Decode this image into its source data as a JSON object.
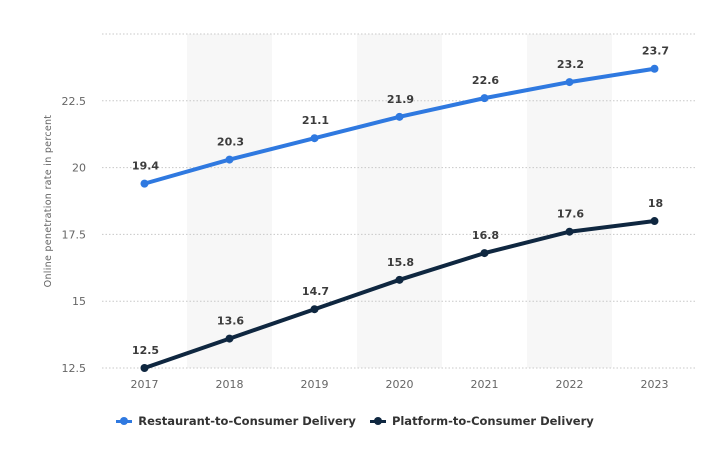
{
  "chart_data": {
    "type": "line",
    "title": "",
    "xlabel": "",
    "ylabel": "Online penetration rate in percent",
    "categories": [
      "2017",
      "2018",
      "2019",
      "2020",
      "2021",
      "2022",
      "2023"
    ],
    "series": [
      {
        "name": "Restaurant-to-Consumer Delivery",
        "color": "#2f79e0",
        "values": [
          19.4,
          20.3,
          21.1,
          21.9,
          22.6,
          23.2,
          23.7
        ],
        "labels": [
          "19.4",
          "20.3",
          "21.1",
          "21.9",
          "22.6",
          "23.2",
          "23.7"
        ]
      },
      {
        "name": "Platform-to-Consumer Delivery",
        "color": "#0f2740",
        "values": [
          12.5,
          13.6,
          14.7,
          15.8,
          16.8,
          17.6,
          18
        ],
        "labels": [
          "12.5",
          "13.6",
          "14.7",
          "15.8",
          "16.8",
          "17.6",
          "18"
        ]
      }
    ],
    "ylim": [
      12.5,
      25
    ],
    "yticks": [
      12.5,
      15,
      17.5,
      20,
      22.5,
      25
    ],
    "ytick_labels": [
      "12.5",
      "15",
      "17.5",
      "20",
      "22.5",
      ""
    ],
    "grid": true,
    "grid_style": "dotted",
    "alternating_column_shading": true,
    "legend_position": "bottom-center"
  },
  "legend": {
    "items": [
      {
        "label": "Restaurant-to-Consumer Delivery",
        "color": "#2f79e0"
      },
      {
        "label": "Platform-to-Consumer Delivery",
        "color": "#0f2740"
      }
    ]
  }
}
